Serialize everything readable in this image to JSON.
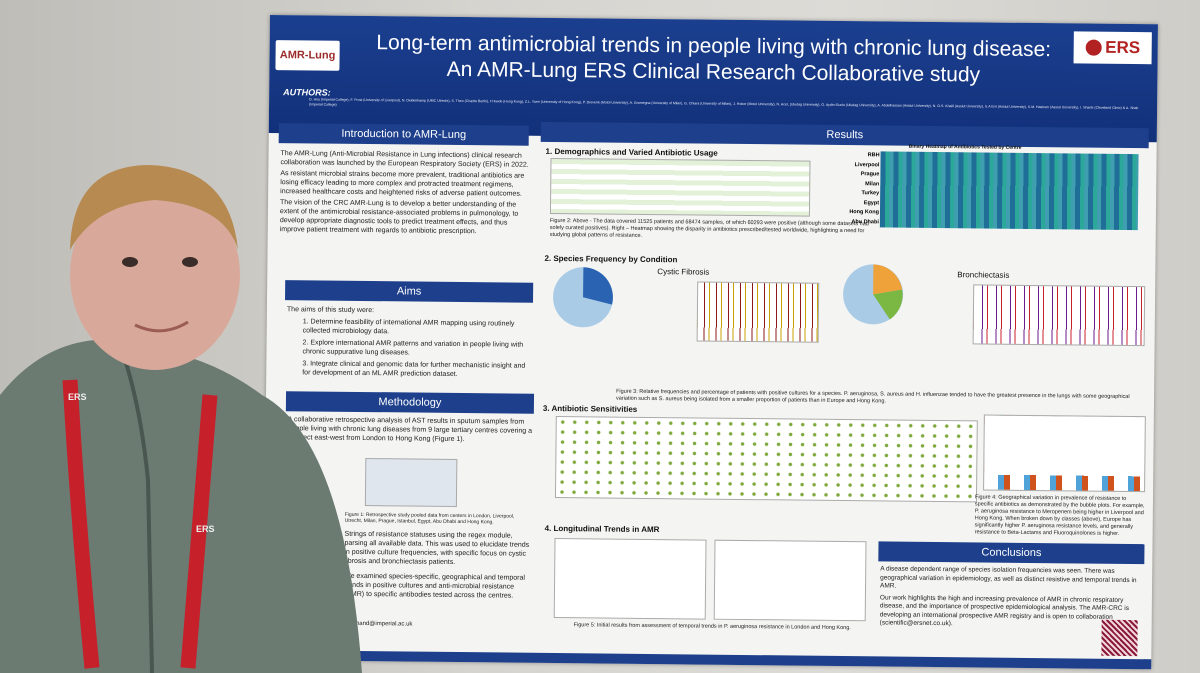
{
  "poster": {
    "title_line1": "Long-term antimicrobial trends in people living with chronic lung disease:",
    "title_line2": "An AMR-Lung ERS Clinical Research Collaborative study",
    "logo_left": "AMR-Lung",
    "logo_right": "ERS",
    "authors_label": "AUTHORS:",
    "authors": "D. Hiru (Imperial College), F. Frost (University of Liverpool), N. Dekkerkamp (UMC Utrecht), S. Theo (Charite Berlin), H Kwok (Hong Kong), Z.L. Yuen (University of Hong Kong), P. Drevenk (Motol University), A. Gramegna (University of Milan), G. Chiara (University of Milan), J. Hober (Motol University), N. Acet, (Uludag University), O. Aydin-Guclu (Uludag University), A. Abdelhassan (Assiut University), N. O.S. Khalil (Assiut University), S.A Erri (Assiut University), S.M. Hashem (Assiut University), I. Sharfe (Cleveland Clinic) & A. Shah (Imperial College)",
    "intro": {
      "heading": "Introduction to AMR-Lung",
      "p1": "The AMR-Lung (Anti-Microbial Resistance in Lung infections) clinical research collaboration was launched by the European Respiratory Society (ERS) in 2022.",
      "p2": "As resistant microbial strains become more prevalent, traditional antibiotics are losing efficacy leading to more complex and protracted treatment regimens, increased healthcare costs and heightened risks of adverse patient outcomes.",
      "p3": "The vision of the CRC AMR-Lung is to develop a better understanding of the extent of the antimicrobial resistance-associated problems in pulmonology, to develop appropriate diagnostic tools to predict treatment effects, and thus improve patient treatment with regards to antibiotic prescription."
    },
    "aims": {
      "heading": "Aims",
      "intro": "The aims of this study were:",
      "a1": "1. Determine feasibility of international AMR mapping using routinely collected microbiology data.",
      "a2": "2. Explore international AMR patterns and variation in people living with chronic suppurative lung diseases.",
      "a3": "3. Integrate clinical and genomic data for further mechanistic insight and for development of an ML AMR prediction dataset."
    },
    "methods": {
      "heading": "Methodology",
      "p1": "A collaborative retrospective analysis of AST results in sputum samples from people living with chronic lung diseases from 9 large tertiary centres covering a transect east-west from London to Hong Kong (Figure 1).",
      "map_caption": "Figure 1: Retrospective study pooled data from centers in London, Liverpool, Utrecht, Milan, Prague, Istanbul, Egypt, Abu Dhabi and Hong Kong.",
      "p2": "Strings of resistance statuses using the regex module, parsing all available data. This was used to elucidate trends in positive culture frequencies, with specific focus on cystic fibrosis and bronchiectasis patients.",
      "p3": "We examined species-specific, geographical and temporal trends in positive cultures and anti-microbial resistance (AMR) to specific antibodies tested across the centres.",
      "email": "a.anand@imperial.ac.uk"
    },
    "results": {
      "heading": "Results",
      "s1": "1. Demographics and Varied Antibiotic Usage",
      "heatmap_title": "Binary Heatmap of Antibiotics Tested by Centre",
      "centres": [
        "RBH",
        "Liverpool",
        "Prague",
        "Milan",
        "Turkey",
        "Egypt",
        "Hong Kong",
        "Abu Dhabi"
      ],
      "fig2_caption": "Figure 2: Above - The data covered 11525 patients and 68474 samples, of which 60293 were positive (although some datasets had solely curated positives). Right – Heatmap showing the disparity in antibiotics prescribed/tested worldwide, highlighting a need for studying global patterns of resistance.",
      "s2": "2. Species Frequency by Condition",
      "cf_title": "Cystic Fibrosis",
      "bx_title": "Bronchiectasis",
      "fig3_caption": "Figure 3: Relative frequencies and percentage of patients with positive cultures for a species. P. aeruginosa, S. aureus and H. influenzae tended to have the greatest presence in the lungs with some geographical variation such as S. aureus being isolated from a smaller proportion of patients than in Europe and Hong Kong.",
      "s3": "3. Antibiotic Sensitivities",
      "fig4_caption": "Figure 4: Geographical variation in prevalence of resistance to specific antibiotics as demonstrated by the bubble plots. For example, P. aeruginosa resistance to Meropenem being higher in Liverpool and Hong Kong. When broken down by classes (above), Europe has significantly higher P. aeruginosa resistance levels, and generally resistance to Beta-Lactams and Fluoroquinolones is higher.",
      "s4": "4. Longitudinal Trends in AMR",
      "fig5_caption": "Figure 5: Initial results from assessment of temporal trends in P. aeruginosa resistance in London and Hong Kong."
    },
    "conclusions": {
      "heading": "Conclusions",
      "p1": "A disease dependent range of species isolation frequencies was seen. There was geographical variation in epidemiology, as well as distinct resistive and temporal trends in AMR.",
      "p2": "Our work highlights the high and increasing prevalence of AMR in chronic respiratory disease, and the importance of prospective epidemiological analysis. The AMR-CRC is developing an international prospective AMR registry and is open to collaboration (scientific@ersnet.co.uk)."
    }
  },
  "lanyard_text": "ERS",
  "colors": {
    "poster_blue": "#1d3f8c",
    "lanyard_red": "#c6202b",
    "shirt": "#6b7b72"
  }
}
